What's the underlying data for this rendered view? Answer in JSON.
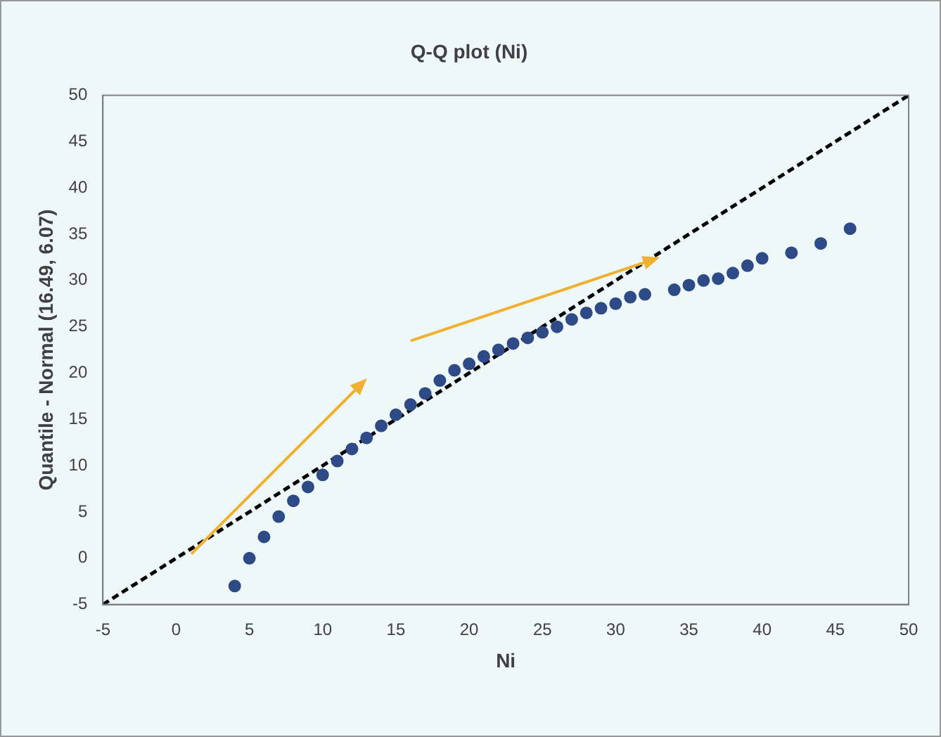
{
  "chart_data": {
    "type": "scatter",
    "title": "Q-Q plot (Ni)",
    "xlabel": "Ni",
    "ylabel": "Quantile - Normal (16.49, 6.07)",
    "x": [
      4,
      5,
      6,
      7,
      8,
      9,
      10,
      11,
      12,
      13,
      14,
      15,
      16,
      17,
      18,
      19,
      20,
      21,
      22,
      23,
      24,
      25,
      26,
      27,
      28,
      29,
      30,
      31,
      32,
      34,
      35,
      36,
      37,
      38,
      39,
      40,
      42,
      44,
      46
    ],
    "series": [
      {
        "type": "scatter",
        "color": "#2e4a87",
        "marker": "circle",
        "values": [
          -3,
          0,
          2.3,
          4.5,
          6.2,
          7.7,
          9,
          10.5,
          11.8,
          13,
          14.3,
          15.5,
          16.6,
          17.8,
          19.2,
          20.3,
          21,
          21.8,
          22.5,
          23.2,
          23.8,
          24.4,
          25,
          25.8,
          26.5,
          27,
          27.5,
          28.2,
          28.5,
          29,
          29.5,
          30,
          30.2,
          30.8,
          31.6,
          32.4,
          33,
          34,
          35.6
        ]
      },
      {
        "type": "line",
        "color": "#000000",
        "marker": "none",
        "line_style": "dashed",
        "x": [
          -5,
          50
        ],
        "values": [
          -5,
          50
        ]
      }
    ],
    "xlim": [
      -5,
      50
    ],
    "xticks": [
      -5,
      0,
      5,
      10,
      15,
      20,
      25,
      30,
      35,
      40,
      45,
      50
    ],
    "ylim": [
      -5,
      50
    ],
    "yticks": [
      -5,
      0,
      5,
      10,
      15,
      20,
      25,
      30,
      35,
      40,
      45,
      50
    ],
    "grid": false,
    "legend": false
  }
}
